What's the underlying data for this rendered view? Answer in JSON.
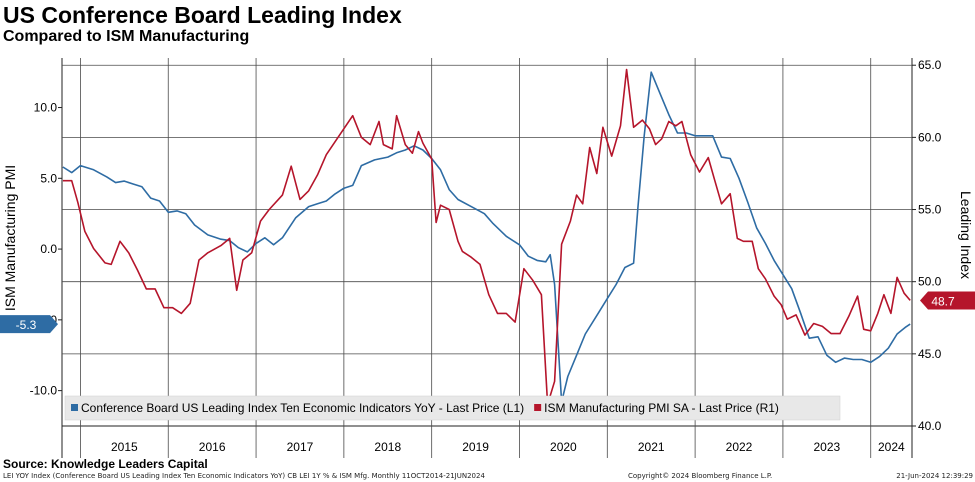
{
  "title": "US Conference Board Leading Index",
  "subtitle": "Compared to ISM Manufacturing",
  "source": "Source: Knowledge Leaders Capital",
  "footer": {
    "left": "LEI YOY Index (Conference Board US Leading Index Ten Economic Indicators YoY) CB LEI 1Y % & ISM Mfg.  Monthly 11OCT2014-21JUN2024",
    "middle": "Copyright© 2024 Bloomberg Finance L.P.",
    "right": "21-Jun-2024 12:39:29"
  },
  "colors": {
    "lei": "#2e6ca4",
    "ism": "#b5152b",
    "grid": "#4a4a4a"
  },
  "chart_data": {
    "type": "line",
    "x_range": [
      2014.79,
      2024.47
    ],
    "years": [
      "2015",
      "2016",
      "2017",
      "2018",
      "2019",
      "2020",
      "2021",
      "2022",
      "2023",
      "2024"
    ],
    "left_axis": {
      "label": "ISM Manufacturing PMI",
      "ticks": [
        "10.0",
        "5.0",
        "0.0",
        "-5.0",
        "-10.0"
      ],
      "tick_values": [
        10,
        5,
        0,
        -5,
        -10
      ],
      "range": [
        -12.5,
        13.5
      ]
    },
    "right_axis": {
      "label": "Leading Index",
      "ticks": [
        "65.0",
        "60.0",
        "55.0",
        "50.0",
        "45.0",
        "40.0"
      ],
      "tick_values": [
        65,
        60,
        55,
        50,
        45,
        40
      ],
      "range": [
        40,
        65.5
      ]
    },
    "last_values": {
      "lei": "-5.3",
      "ism": "48.7"
    },
    "legend": [
      {
        "name": "Conference Board US Leading Index Ten Economic Indicators YoY - Last Price (L1)",
        "color": "#2e6ca4"
      },
      {
        "name": "ISM Manufacturing PMI SA - Last Price (R1)",
        "color": "#b5152b"
      }
    ],
    "series": [
      {
        "name": "Conference Board US Leading Index Ten Economic Indicators YoY - Last Price (L1)",
        "axis": "left",
        "color": "#2e6ca4",
        "points": [
          [
            2014.8,
            5.8
          ],
          [
            2014.9,
            5.4
          ],
          [
            2015.0,
            5.9
          ],
          [
            2015.15,
            5.6
          ],
          [
            2015.3,
            5.1
          ],
          [
            2015.4,
            4.7
          ],
          [
            2015.5,
            4.8
          ],
          [
            2015.6,
            4.6
          ],
          [
            2015.7,
            4.4
          ],
          [
            2015.8,
            3.6
          ],
          [
            2015.9,
            3.4
          ],
          [
            2016.0,
            2.6
          ],
          [
            2016.1,
            2.7
          ],
          [
            2016.2,
            2.5
          ],
          [
            2016.3,
            1.7
          ],
          [
            2016.45,
            1.0
          ],
          [
            2016.6,
            0.7
          ],
          [
            2016.7,
            0.6
          ],
          [
            2016.8,
            0.1
          ],
          [
            2016.9,
            -0.2
          ],
          [
            2017.0,
            0.4
          ],
          [
            2017.1,
            0.8
          ],
          [
            2017.2,
            0.3
          ],
          [
            2017.3,
            0.8
          ],
          [
            2017.45,
            2.2
          ],
          [
            2017.6,
            3.0
          ],
          [
            2017.7,
            3.2
          ],
          [
            2017.8,
            3.4
          ],
          [
            2017.9,
            3.9
          ],
          [
            2018.0,
            4.3
          ],
          [
            2018.1,
            4.5
          ],
          [
            2018.2,
            5.9
          ],
          [
            2018.35,
            6.3
          ],
          [
            2018.5,
            6.5
          ],
          [
            2018.6,
            6.8
          ],
          [
            2018.7,
            7.0
          ],
          [
            2018.8,
            7.3
          ],
          [
            2018.9,
            7.0
          ],
          [
            2019.0,
            6.4
          ],
          [
            2019.1,
            5.6
          ],
          [
            2019.2,
            4.2
          ],
          [
            2019.3,
            3.5
          ],
          [
            2019.45,
            3.0
          ],
          [
            2019.6,
            2.5
          ],
          [
            2019.7,
            1.8
          ],
          [
            2019.85,
            0.9
          ],
          [
            2020.0,
            0.3
          ],
          [
            2020.1,
            -0.5
          ],
          [
            2020.2,
            -0.8
          ],
          [
            2020.3,
            -0.9
          ],
          [
            2020.35,
            -0.4
          ],
          [
            2020.4,
            -2.5
          ],
          [
            2020.48,
            -10.8
          ],
          [
            2020.55,
            -9.0
          ],
          [
            2020.65,
            -7.5
          ],
          [
            2020.75,
            -6.0
          ],
          [
            2020.9,
            -4.5
          ],
          [
            2021.0,
            -3.5
          ],
          [
            2021.1,
            -2.5
          ],
          [
            2021.2,
            -1.3
          ],
          [
            2021.3,
            -1.0
          ],
          [
            2021.35,
            3.0
          ],
          [
            2021.42,
            8.0
          ],
          [
            2021.5,
            12.5
          ],
          [
            2021.6,
            11.0
          ],
          [
            2021.7,
            9.5
          ],
          [
            2021.8,
            8.2
          ],
          [
            2021.9,
            8.2
          ],
          [
            2022.0,
            8.0
          ],
          [
            2022.1,
            8.0
          ],
          [
            2022.2,
            8.0
          ],
          [
            2022.3,
            6.5
          ],
          [
            2022.4,
            6.4
          ],
          [
            2022.5,
            5.0
          ],
          [
            2022.6,
            3.3
          ],
          [
            2022.7,
            1.5
          ],
          [
            2022.8,
            0.4
          ],
          [
            2022.9,
            -0.8
          ],
          [
            2023.0,
            -1.8
          ],
          [
            2023.1,
            -2.8
          ],
          [
            2023.2,
            -4.5
          ],
          [
            2023.3,
            -6.3
          ],
          [
            2023.4,
            -6.2
          ],
          [
            2023.5,
            -7.5
          ],
          [
            2023.6,
            -8.0
          ],
          [
            2023.7,
            -7.7
          ],
          [
            2023.8,
            -7.8
          ],
          [
            2023.9,
            -7.8
          ],
          [
            2024.0,
            -8.0
          ],
          [
            2024.1,
            -7.6
          ],
          [
            2024.2,
            -7.0
          ],
          [
            2024.3,
            -6.0
          ],
          [
            2024.4,
            -5.5
          ],
          [
            2024.45,
            -5.3
          ]
        ]
      },
      {
        "name": "ISM Manufacturing PMI SA - Last Price (R1)",
        "axis": "right",
        "color": "#b5152b",
        "points": [
          [
            2014.8,
            57.0
          ],
          [
            2014.9,
            57.0
          ],
          [
            2014.97,
            55.5
          ],
          [
            2015.05,
            53.5
          ],
          [
            2015.15,
            52.3
          ],
          [
            2015.28,
            51.3
          ],
          [
            2015.35,
            51.2
          ],
          [
            2015.45,
            52.8
          ],
          [
            2015.55,
            52.0
          ],
          [
            2015.65,
            50.8
          ],
          [
            2015.75,
            49.5
          ],
          [
            2015.85,
            49.5
          ],
          [
            2015.95,
            48.2
          ],
          [
            2016.05,
            48.2
          ],
          [
            2016.15,
            47.8
          ],
          [
            2016.25,
            48.5
          ],
          [
            2016.35,
            51.5
          ],
          [
            2016.45,
            52.0
          ],
          [
            2016.6,
            52.5
          ],
          [
            2016.7,
            53.0
          ],
          [
            2016.78,
            49.4
          ],
          [
            2016.85,
            51.5
          ],
          [
            2016.95,
            52.0
          ],
          [
            2017.05,
            54.2
          ],
          [
            2017.15,
            55.0
          ],
          [
            2017.3,
            56.0
          ],
          [
            2017.4,
            58.0
          ],
          [
            2017.5,
            55.7
          ],
          [
            2017.6,
            56.3
          ],
          [
            2017.7,
            57.4
          ],
          [
            2017.8,
            58.8
          ],
          [
            2017.9,
            59.7
          ],
          [
            2018.0,
            60.6
          ],
          [
            2018.1,
            61.5
          ],
          [
            2018.2,
            60.0
          ],
          [
            2018.3,
            59.5
          ],
          [
            2018.4,
            61.1
          ],
          [
            2018.45,
            59.5
          ],
          [
            2018.55,
            59.2
          ],
          [
            2018.6,
            61.5
          ],
          [
            2018.7,
            59.5
          ],
          [
            2018.78,
            58.9
          ],
          [
            2018.85,
            60.4
          ],
          [
            2018.9,
            59.6
          ],
          [
            2019.0,
            58.5
          ],
          [
            2019.05,
            54.1
          ],
          [
            2019.1,
            55.3
          ],
          [
            2019.2,
            55.0
          ],
          [
            2019.3,
            52.8
          ],
          [
            2019.35,
            52.1
          ],
          [
            2019.45,
            51.7
          ],
          [
            2019.55,
            51.2
          ],
          [
            2019.65,
            49.1
          ],
          [
            2019.75,
            47.8
          ],
          [
            2019.85,
            47.8
          ],
          [
            2019.95,
            47.2
          ],
          [
            2020.05,
            50.9
          ],
          [
            2020.15,
            50.1
          ],
          [
            2020.25,
            49.1
          ],
          [
            2020.32,
            41.5
          ],
          [
            2020.4,
            43.1
          ],
          [
            2020.48,
            52.6
          ],
          [
            2020.58,
            54.2
          ],
          [
            2020.65,
            56.0
          ],
          [
            2020.72,
            55.4
          ],
          [
            2020.8,
            59.3
          ],
          [
            2020.88,
            57.5
          ],
          [
            2020.95,
            60.7
          ],
          [
            2021.05,
            58.7
          ],
          [
            2021.15,
            60.8
          ],
          [
            2021.22,
            64.7
          ],
          [
            2021.3,
            60.7
          ],
          [
            2021.4,
            61.2
          ],
          [
            2021.48,
            60.6
          ],
          [
            2021.55,
            59.5
          ],
          [
            2021.62,
            59.9
          ],
          [
            2021.7,
            61.1
          ],
          [
            2021.78,
            60.8
          ],
          [
            2021.85,
            61.1
          ],
          [
            2021.95,
            58.8
          ],
          [
            2022.05,
            57.6
          ],
          [
            2022.15,
            58.6
          ],
          [
            2022.22,
            57.1
          ],
          [
            2022.3,
            55.4
          ],
          [
            2022.4,
            56.1
          ],
          [
            2022.48,
            53.0
          ],
          [
            2022.55,
            52.8
          ],
          [
            2022.65,
            52.8
          ],
          [
            2022.72,
            50.9
          ],
          [
            2022.8,
            50.2
          ],
          [
            2022.9,
            49.0
          ],
          [
            2022.98,
            48.4
          ],
          [
            2023.05,
            47.4
          ],
          [
            2023.15,
            47.7
          ],
          [
            2023.25,
            46.3
          ],
          [
            2023.35,
            47.1
          ],
          [
            2023.45,
            46.9
          ],
          [
            2023.55,
            46.4
          ],
          [
            2023.65,
            46.4
          ],
          [
            2023.75,
            47.6
          ],
          [
            2023.85,
            49.0
          ],
          [
            2023.92,
            46.7
          ],
          [
            2024.0,
            46.6
          ],
          [
            2024.08,
            47.8
          ],
          [
            2024.15,
            49.1
          ],
          [
            2024.23,
            47.8
          ],
          [
            2024.3,
            50.3
          ],
          [
            2024.38,
            49.2
          ],
          [
            2024.45,
            48.7
          ]
        ]
      }
    ]
  }
}
